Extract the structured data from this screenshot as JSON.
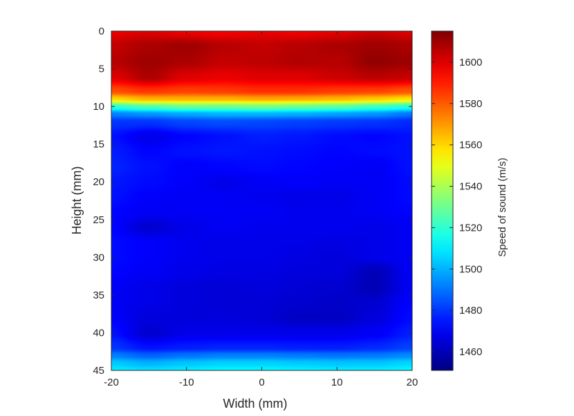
{
  "chart_data": {
    "type": "heatmap",
    "title": "",
    "xlabel": "Width (mm)",
    "ylabel": "Height (mm)",
    "xlim": [
      -20,
      20
    ],
    "ylim": [
      0,
      45
    ],
    "y_direction": "downward",
    "x_ticks": [
      "-20",
      "-10",
      "0",
      "10",
      "20"
    ],
    "y_ticks": [
      "0",
      "5",
      "10",
      "15",
      "20",
      "25",
      "30",
      "35",
      "40",
      "45"
    ],
    "colormap": "jet",
    "colorbar": {
      "label": "Speed of sound (m/s)",
      "range": [
        1451,
        1615
      ],
      "ticks": [
        "1460",
        "1480",
        "1500",
        "1520",
        "1540",
        "1560",
        "1580",
        "1600"
      ]
    },
    "grid": false,
    "x_samples": [
      -20,
      -15,
      -10,
      -5,
      0,
      5,
      10,
      15,
      20
    ],
    "y_samples": [
      0,
      2,
      4,
      6,
      8,
      9,
      10,
      11,
      12,
      14,
      16,
      18,
      20,
      22,
      24,
      26,
      28,
      30,
      32,
      34,
      36,
      38,
      40,
      42,
      43,
      44,
      45
    ],
    "values": [
      [
        1598,
        1600,
        1597,
        1596,
        1598,
        1597,
        1599,
        1603,
        1600
      ],
      [
        1604,
        1608,
        1610,
        1606,
        1604,
        1606,
        1608,
        1610,
        1608
      ],
      [
        1606,
        1610,
        1608,
        1604,
        1605,
        1607,
        1606,
        1612,
        1610
      ],
      [
        1600,
        1608,
        1600,
        1598,
        1600,
        1600,
        1603,
        1606,
        1604
      ],
      [
        1582,
        1586,
        1584,
        1585,
        1587,
        1587,
        1585,
        1584,
        1581
      ],
      [
        1560,
        1566,
        1566,
        1566,
        1568,
        1567,
        1565,
        1562,
        1558
      ],
      [
        1520,
        1526,
        1530,
        1530,
        1532,
        1530,
        1528,
        1523,
        1518
      ],
      [
        1492,
        1495,
        1498,
        1500,
        1500,
        1499,
        1497,
        1495,
        1490
      ],
      [
        1480,
        1480,
        1483,
        1484,
        1483,
        1482,
        1481,
        1480,
        1478
      ],
      [
        1474,
        1468,
        1472,
        1474,
        1476,
        1475,
        1473,
        1472,
        1474
      ],
      [
        1476,
        1472,
        1474,
        1475,
        1474,
        1473,
        1472,
        1473,
        1474
      ],
      [
        1477,
        1474,
        1471,
        1472,
        1473,
        1472,
        1471,
        1470,
        1474
      ],
      [
        1475,
        1473,
        1471,
        1468,
        1470,
        1471,
        1470,
        1470,
        1473
      ],
      [
        1474,
        1471,
        1470,
        1470,
        1469,
        1468,
        1468,
        1470,
        1473
      ],
      [
        1472,
        1470,
        1470,
        1470,
        1470,
        1469,
        1469,
        1470,
        1472
      ],
      [
        1472,
        1464,
        1468,
        1470,
        1469,
        1469,
        1469,
        1468,
        1470
      ],
      [
        1473,
        1471,
        1469,
        1468,
        1468,
        1468,
        1467,
        1468,
        1470
      ],
      [
        1473,
        1471,
        1469,
        1468,
        1468,
        1467,
        1466,
        1468,
        1470
      ],
      [
        1472,
        1470,
        1468,
        1467,
        1467,
        1466,
        1466,
        1460,
        1470
      ],
      [
        1470,
        1468,
        1466,
        1465,
        1466,
        1465,
        1464,
        1460,
        1470
      ],
      [
        1470,
        1468,
        1466,
        1465,
        1465,
        1464,
        1463,
        1464,
        1472
      ],
      [
        1471,
        1466,
        1466,
        1466,
        1465,
        1462,
        1462,
        1466,
        1473
      ],
      [
        1474,
        1464,
        1468,
        1468,
        1468,
        1468,
        1468,
        1470,
        1476
      ],
      [
        1480,
        1474,
        1476,
        1477,
        1477,
        1476,
        1476,
        1478,
        1482
      ],
      [
        1492,
        1487,
        1490,
        1492,
        1492,
        1491,
        1490,
        1491,
        1494
      ],
      [
        1504,
        1500,
        1503,
        1505,
        1505,
        1504,
        1503,
        1503,
        1506
      ],
      [
        1510,
        1508,
        1510,
        1512,
        1512,
        1511,
        1510,
        1510,
        1512
      ]
    ]
  }
}
